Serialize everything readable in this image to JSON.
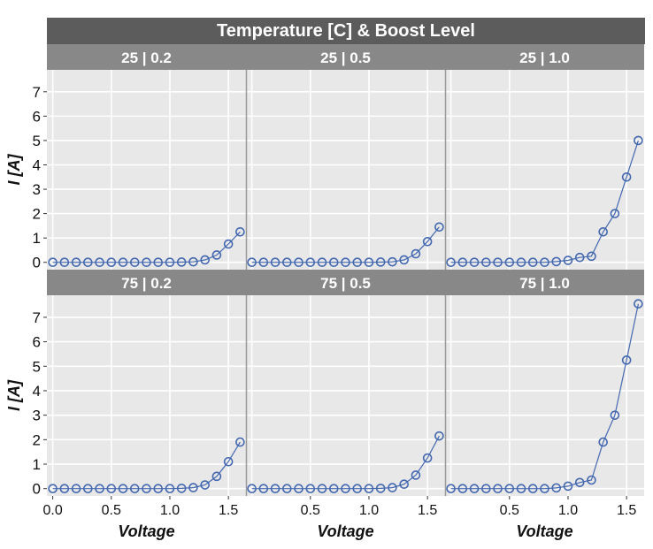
{
  "chart_data": {
    "type": "scatter",
    "super_title": "Temperature [C] & Boost Level",
    "xlabel": "Voltage",
    "ylabel": "I [A]",
    "xlim": [
      -0.05,
      1.65
    ],
    "ylim": [
      -0.3,
      7.9
    ],
    "x_ticks": [
      0.0,
      0.5,
      1.0,
      1.5
    ],
    "x_tick_labels": [
      "0.0",
      "0.5",
      "1.0",
      "1.5"
    ],
    "y_ticks": [
      0,
      1,
      2,
      3,
      4,
      5,
      6,
      7
    ],
    "y_tick_labels": [
      "0",
      "1",
      "2",
      "3",
      "4",
      "5",
      "6",
      "7"
    ],
    "x": [
      0.0,
      0.1,
      0.2,
      0.3,
      0.4,
      0.5,
      0.6,
      0.7,
      0.8,
      0.9,
      1.0,
      1.1,
      1.2,
      1.3,
      1.4,
      1.5,
      1.6
    ],
    "marker_color": "#4468b0",
    "panel_bg": "#e8e8e8",
    "strip_bg": "#888888",
    "title_bg": "#5c5c5c",
    "panels": [
      {
        "label": "25 | 0.2",
        "values": [
          0,
          0,
          0,
          0,
          0,
          0,
          0,
          0,
          0,
          0,
          0,
          0.01,
          0.02,
          0.1,
          0.3,
          0.75,
          1.25
        ]
      },
      {
        "label": "25 | 0.5",
        "values": [
          0,
          0,
          0,
          0,
          0,
          0,
          0,
          0,
          0,
          0,
          0,
          0.01,
          0.02,
          0.1,
          0.35,
          0.85,
          1.45
        ]
      },
      {
        "label": "25 | 1.0",
        "values": [
          0,
          0,
          0,
          0,
          0,
          0,
          0,
          0,
          0,
          0.03,
          0.08,
          0.2,
          0.25,
          1.25,
          2.0,
          3.5,
          5.0
        ]
      },
      {
        "label": "75 | 0.2",
        "values": [
          0,
          0,
          0,
          0,
          0,
          0,
          0,
          0,
          0,
          0,
          0,
          0.01,
          0.04,
          0.15,
          0.5,
          1.1,
          1.9
        ]
      },
      {
        "label": "75 | 0.5",
        "values": [
          0,
          0,
          0,
          0,
          0,
          0,
          0,
          0,
          0,
          0,
          0,
          0.01,
          0.04,
          0.18,
          0.55,
          1.25,
          2.15
        ]
      },
      {
        "label": "75 | 1.0",
        "values": [
          0,
          0,
          0,
          0,
          0,
          0,
          0,
          0,
          0,
          0.03,
          0.1,
          0.25,
          0.35,
          1.9,
          3.0,
          5.25,
          7.55
        ]
      }
    ]
  }
}
